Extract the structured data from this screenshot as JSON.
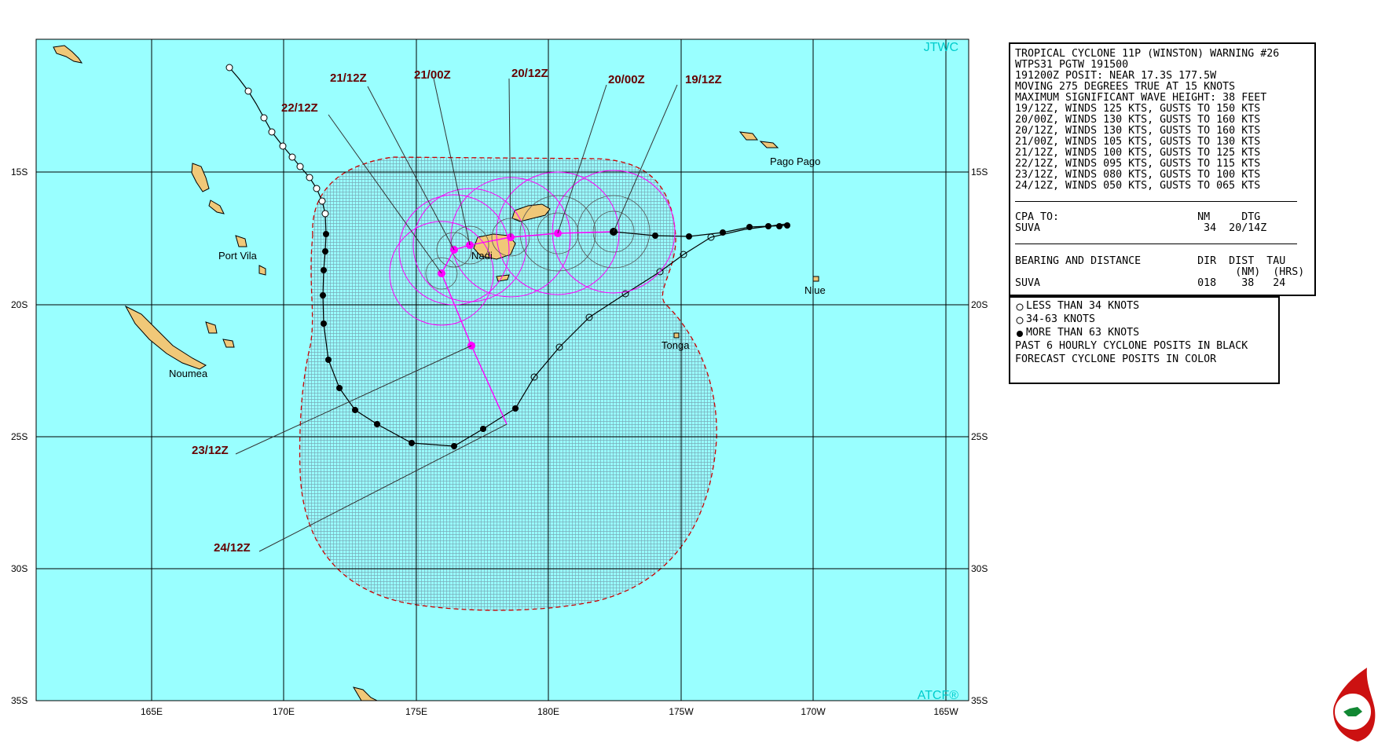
{
  "map": {
    "corner_top": "JTWC",
    "corner_bottom": "ATCF®",
    "lat_labels": [
      "15S",
      "20S",
      "25S",
      "30S",
      "35S"
    ],
    "lon_labels": [
      "165E",
      "170E",
      "175E",
      "180E",
      "175W",
      "170W",
      "165W"
    ],
    "places": [
      "Pago Pago",
      "Port Vila",
      "Nadi",
      "Niue",
      "Tonga",
      "Noumea"
    ],
    "forecast_labels": [
      "21/12Z",
      "21/00Z",
      "20/12Z",
      "20/00Z",
      "19/12Z",
      "22/12Z",
      "23/12Z",
      "24/12Z"
    ]
  },
  "warning": {
    "header": [
      "TROPICAL CYCLONE 11P (WINSTON) WARNING #26",
      "WTPS31 PGTW 191500",
      "191200Z POSIT: NEAR 17.3S 177.5W",
      "MOVING 275 DEGREES TRUE AT 15 KNOTS",
      "MAXIMUM SIGNIFICANT WAVE HEIGHT: 38 FEET"
    ],
    "forecast": [
      "19/12Z, WINDS 125 KTS, GUSTS TO 150 KTS",
      "20/00Z, WINDS 130 KTS, GUSTS TO 160 KTS",
      "20/12Z, WINDS 130 KTS, GUSTS TO 160 KTS",
      "21/00Z, WINDS 105 KTS, GUSTS TO 130 KTS",
      "21/12Z, WINDS 100 KTS, GUSTS TO 125 KTS",
      "22/12Z, WINDS 095 KTS, GUSTS TO 115 KTS",
      "23/12Z, WINDS 080 KTS, GUSTS TO 100 KTS",
      "24/12Z, WINDS 050 KTS, GUSTS TO 065 KTS"
    ],
    "cpa_header": "CPA TO:                      NM     DTG",
    "cpa_row": "SUVA                          34  20/14Z",
    "bd_header": "BEARING AND DISTANCE         DIR  DIST  TAU",
    "bd_header2": "                                   (NM)  (HRS)",
    "bd_row": "SUVA                         018    38   24"
  },
  "legend": {
    "items": [
      "LESS THAN 34 KNOTS",
      "34-63 KNOTS",
      "MORE THAN 63 KNOTS"
    ],
    "notes": [
      "PAST 6 HOURLY CYCLONE POSITS IN BLACK",
      "FORECAST CYCLONE POSITS IN COLOR"
    ]
  },
  "colors": {
    "ocean": "#99ffff",
    "land": "#f0c878",
    "grid": "#000000",
    "past_track": "#000000",
    "forecast_track": "#ff00ff",
    "danger_area": "#cc0000",
    "corner_text": "#00cccc",
    "label_text": "#660000"
  }
}
